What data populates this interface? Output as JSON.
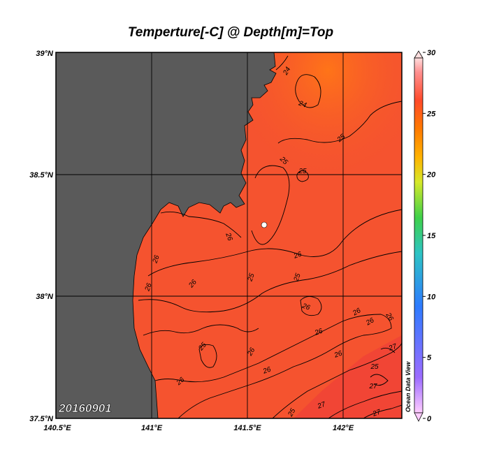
{
  "title": "Temperture[-C] @ Depth[m]=Top",
  "date_label": "20160901",
  "watermark": "Ocean Data View",
  "lat_ticks": [
    "39°N",
    "38.5°N",
    "38°N",
    "37.5°N"
  ],
  "lon_ticks": [
    "140.5°E",
    "141°E",
    "141.5°E",
    "142°E"
  ],
  "colorbar": {
    "min": 0,
    "max": 30,
    "tick_labels": [
      "30",
      "25",
      "20",
      "15",
      "10",
      "5",
      "0"
    ],
    "stops": [
      "#ffccff",
      "#9c6cff",
      "#2e7bff",
      "#2ec4c4",
      "#3fd14a",
      "#d6e82a",
      "#ffb300",
      "#ff7a00",
      "#ff4a2a",
      "#ff9090",
      "#ffdede"
    ]
  },
  "colors": {
    "land": "#5a5a5a",
    "sea": "#f55a30",
    "warm_sea": "#ff6a1e",
    "cool_sea": "#f24a35"
  },
  "contour_labels": [
    "24",
    "24",
    "25",
    "25",
    "25",
    "26",
    "26",
    "26",
    "26",
    "26",
    "25",
    "25",
    "26",
    "26",
    "26",
    "26",
    "26",
    "26",
    "25",
    "26",
    "26",
    "26",
    "27",
    "27",
    "27",
    "27",
    "25",
    "25"
  ]
}
